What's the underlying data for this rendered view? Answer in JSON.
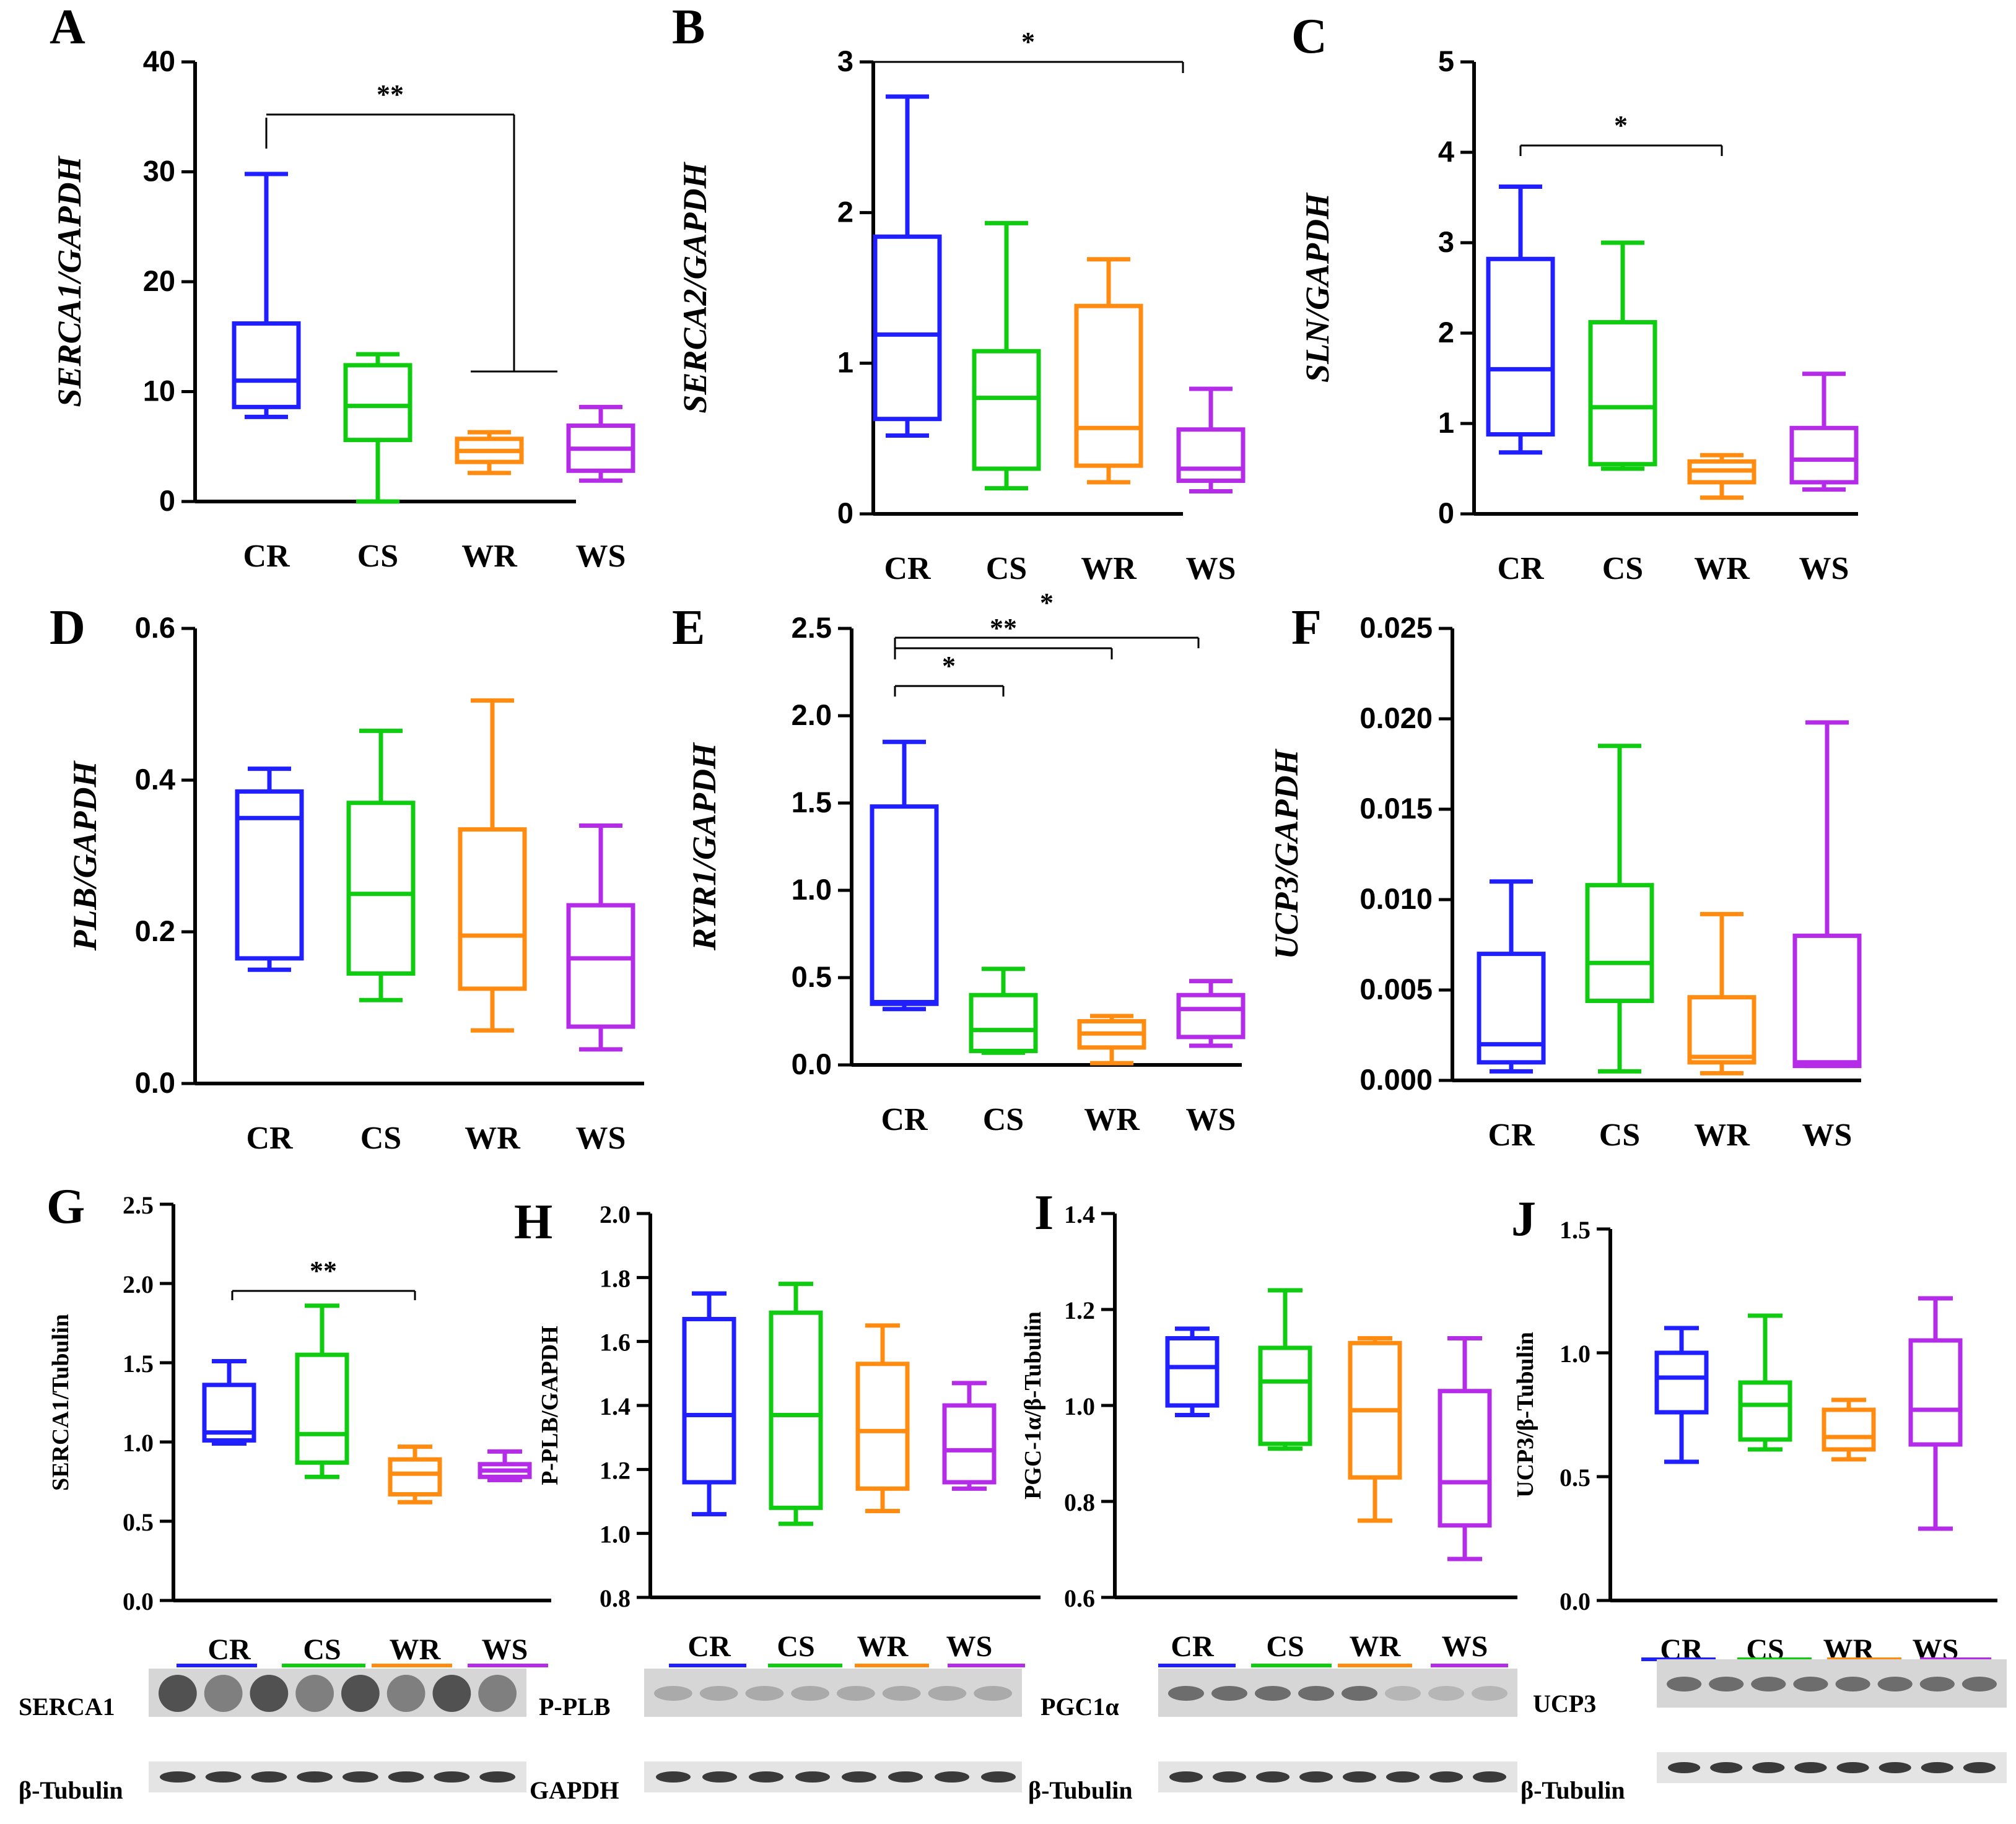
{
  "categories": [
    "CR",
    "CS",
    "WR",
    "WS"
  ],
  "colors": {
    "CR": "#1f1fff",
    "CS": "#10cc10",
    "WR": "#ff8c10",
    "WS": "#b42ce8"
  },
  "chart_data": [
    {
      "panel": "A",
      "type": "box",
      "ylabel": "SERCA1/GAPDH",
      "ylim": [
        0,
        40
      ],
      "ticks": [
        "0",
        "10",
        "20",
        "30",
        "40"
      ],
      "boxes": [
        {
          "category": "CR",
          "min": 7.7,
          "q1": 8.6,
          "median": 11,
          "q3": 16.2,
          "max": 29.8
        },
        {
          "category": "CS",
          "min": 0,
          "q1": 5.6,
          "median": 8.7,
          "q3": 12.4,
          "max": 13.4
        },
        {
          "category": "WR",
          "min": 2.6,
          "q1": 3.6,
          "median": 4.6,
          "q3": 5.7,
          "max": 6.3
        },
        {
          "category": "WS",
          "min": 1.9,
          "q1": 2.8,
          "median": 4.8,
          "q3": 6.9,
          "max": 8.6
        }
      ],
      "significance": [
        {
          "from": "CR",
          "to": "WR-WS",
          "label": "**"
        }
      ]
    },
    {
      "panel": "B",
      "type": "box",
      "ylabel": "SERCA2/GAPDH",
      "ylim": [
        0,
        3
      ],
      "ticks": [
        "0",
        "1",
        "2",
        "3"
      ],
      "boxes": [
        {
          "category": "CR",
          "min": 0.52,
          "q1": 0.63,
          "median": 1.19,
          "q3": 1.84,
          "max": 2.77
        },
        {
          "category": "CS",
          "min": 0.17,
          "q1": 0.3,
          "median": 0.77,
          "q3": 1.08,
          "max": 1.93
        },
        {
          "category": "WR",
          "min": 0.21,
          "q1": 0.32,
          "median": 0.57,
          "q3": 1.38,
          "max": 1.69
        },
        {
          "category": "WS",
          "min": 0.15,
          "q1": 0.22,
          "median": 0.3,
          "q3": 0.56,
          "max": 0.83
        }
      ],
      "significance": [
        {
          "from": "CR",
          "to": "WS",
          "label": "*"
        }
      ]
    },
    {
      "panel": "C",
      "type": "box",
      "ylabel": "SLN/GAPDH",
      "ylim": [
        0,
        5
      ],
      "ticks": [
        "0",
        "1",
        "2",
        "3",
        "4",
        "5"
      ],
      "boxes": [
        {
          "category": "CR",
          "min": 0.68,
          "q1": 0.88,
          "median": 1.6,
          "q3": 2.82,
          "max": 3.62
        },
        {
          "category": "CS",
          "min": 0.5,
          "q1": 0.55,
          "median": 1.18,
          "q3": 2.12,
          "max": 3.0
        },
        {
          "category": "WR",
          "min": 0.18,
          "q1": 0.35,
          "median": 0.48,
          "q3": 0.58,
          "max": 0.65
        },
        {
          "category": "WS",
          "min": 0.27,
          "q1": 0.35,
          "median": 0.6,
          "q3": 0.95,
          "max": 1.55
        }
      ],
      "significance": [
        {
          "from": "CR",
          "to": "WR",
          "label": "*"
        }
      ]
    },
    {
      "panel": "D",
      "type": "box",
      "ylabel": "PLB/GAPDH",
      "ylim": [
        0,
        0.6
      ],
      "ticks": [
        "0.0",
        "0.2",
        "0.4",
        "0.6"
      ],
      "boxes": [
        {
          "category": "CR",
          "min": 0.15,
          "q1": 0.165,
          "median": 0.35,
          "q3": 0.385,
          "max": 0.415
        },
        {
          "category": "CS",
          "min": 0.11,
          "q1": 0.145,
          "median": 0.25,
          "q3": 0.37,
          "max": 0.465
        },
        {
          "category": "WR",
          "min": 0.07,
          "q1": 0.125,
          "median": 0.195,
          "q3": 0.335,
          "max": 0.505
        },
        {
          "category": "WS",
          "min": 0.045,
          "q1": 0.075,
          "median": 0.165,
          "q3": 0.235,
          "max": 0.34
        }
      ],
      "significance": []
    },
    {
      "panel": "E",
      "type": "box",
      "ylabel": "RYR1/GAPDH",
      "ylim": [
        0,
        2.5
      ],
      "ticks": [
        "0.0",
        "0.5",
        "1.0",
        "1.5",
        "2.0",
        "2.5"
      ],
      "boxes": [
        {
          "category": "CR",
          "min": 0.32,
          "q1": 0.35,
          "median": 0.36,
          "q3": 1.48,
          "max": 1.85
        },
        {
          "category": "CS",
          "min": 0.07,
          "q1": 0.08,
          "median": 0.2,
          "q3": 0.4,
          "max": 0.55
        },
        {
          "category": "WR",
          "min": 0.01,
          "q1": 0.1,
          "median": 0.18,
          "q3": 0.25,
          "max": 0.28
        },
        {
          "category": "WS",
          "min": 0.11,
          "q1": 0.16,
          "median": 0.32,
          "q3": 0.4,
          "max": 0.48
        }
      ],
      "significance": [
        {
          "from": "CR",
          "to": "CS",
          "label": "*"
        },
        {
          "from": "CR",
          "to": "WR",
          "label": "**"
        },
        {
          "from": "CR",
          "to": "WS",
          "label": "*"
        }
      ]
    },
    {
      "panel": "F",
      "type": "box",
      "ylabel": "UCP3/GAPDH",
      "ylim": [
        0,
        0.025
      ],
      "ticks": [
        "0.000",
        "0.005",
        "0.010",
        "0.015",
        "0.020",
        "0.025"
      ],
      "boxes": [
        {
          "category": "CR",
          "min": 0.0005,
          "q1": 0.001,
          "median": 0.002,
          "q3": 0.007,
          "max": 0.011
        },
        {
          "category": "CS",
          "min": 0.0005,
          "q1": 0.0044,
          "median": 0.0065,
          "q3": 0.0108,
          "max": 0.0185
        },
        {
          "category": "WR",
          "min": 0.0004,
          "q1": 0.001,
          "median": 0.0013,
          "q3": 0.0046,
          "max": 0.0092
        },
        {
          "category": "WS",
          "min": 0.0008,
          "q1": 0.0008,
          "median": 0.001,
          "q3": 0.008,
          "max": 0.0198
        }
      ],
      "significance": []
    },
    {
      "panel": "G",
      "type": "box",
      "ylabel": "SERCA1/Tubulin",
      "ylim": [
        0,
        2.5
      ],
      "ticks": [
        "0.0",
        "0.5",
        "1.0",
        "1.5",
        "2.0",
        "2.5"
      ],
      "boxes": [
        {
          "category": "CR",
          "min": 0.99,
          "q1": 1.01,
          "median": 1.06,
          "q3": 1.36,
          "max": 1.51
        },
        {
          "category": "CS",
          "min": 0.78,
          "q1": 0.87,
          "median": 1.05,
          "q3": 1.55,
          "max": 1.86
        },
        {
          "category": "WR",
          "min": 0.62,
          "q1": 0.67,
          "median": 0.8,
          "q3": 0.89,
          "max": 0.97
        },
        {
          "category": "WS",
          "min": 0.76,
          "q1": 0.78,
          "median": 0.82,
          "q3": 0.86,
          "max": 0.94
        }
      ],
      "significance": [
        {
          "from": "CR",
          "to": "WR",
          "label": "**"
        }
      ]
    },
    {
      "panel": "H",
      "type": "box",
      "ylabel": "P-PLB/GAPDH",
      "ylim": [
        0.8,
        2.0
      ],
      "ticks": [
        "0.8",
        "1.0",
        "1.2",
        "1.4",
        "1.6",
        "1.8",
        "2.0"
      ],
      "boxes": [
        {
          "category": "CR",
          "min": 1.06,
          "q1": 1.16,
          "median": 1.37,
          "q3": 1.67,
          "max": 1.75
        },
        {
          "category": "CS",
          "min": 1.03,
          "q1": 1.08,
          "median": 1.37,
          "q3": 1.69,
          "max": 1.78
        },
        {
          "category": "WR",
          "min": 1.07,
          "q1": 1.14,
          "median": 1.32,
          "q3": 1.53,
          "max": 1.65
        },
        {
          "category": "WS",
          "min": 1.14,
          "q1": 1.16,
          "median": 1.26,
          "q3": 1.4,
          "max": 1.47
        }
      ],
      "significance": []
    },
    {
      "panel": "I",
      "type": "box",
      "ylabel": "PGC-1α/β-Tubulin",
      "ylim": [
        0.6,
        1.4
      ],
      "ticks": [
        "0.6",
        "0.8",
        "1.0",
        "1.2",
        "1.4"
      ],
      "boxes": [
        {
          "category": "CR",
          "min": 0.98,
          "q1": 1.0,
          "median": 1.08,
          "q3": 1.14,
          "max": 1.16
        },
        {
          "category": "CS",
          "min": 0.91,
          "q1": 0.92,
          "median": 1.05,
          "q3": 1.12,
          "max": 1.24
        },
        {
          "category": "WR",
          "min": 0.76,
          "q1": 0.85,
          "median": 0.99,
          "q3": 1.13,
          "max": 1.14
        },
        {
          "category": "WS",
          "min": 0.68,
          "q1": 0.75,
          "median": 0.84,
          "q3": 1.03,
          "max": 1.14
        }
      ],
      "significance": []
    },
    {
      "panel": "J",
      "type": "box",
      "ylabel": "UCP3/β-Tubulin",
      "ylim": [
        0,
        1.5
      ],
      "ticks": [
        "0.0",
        "0.5",
        "1.0",
        "1.5"
      ],
      "boxes": [
        {
          "category": "CR",
          "min": 0.56,
          "q1": 0.76,
          "median": 0.9,
          "q3": 1.0,
          "max": 1.1
        },
        {
          "category": "CS",
          "min": 0.61,
          "q1": 0.65,
          "median": 0.79,
          "q3": 0.88,
          "max": 1.15
        },
        {
          "category": "WR",
          "min": 0.57,
          "q1": 0.61,
          "median": 0.66,
          "q3": 0.77,
          "max": 0.81
        },
        {
          "category": "WS",
          "min": 0.29,
          "q1": 0.63,
          "median": 0.77,
          "q3": 1.05,
          "max": 1.22
        }
      ],
      "significance": []
    }
  ],
  "blots": [
    {
      "top": "SERCA1",
      "bottom": "β-Tubulin",
      "bottom_right": "GAPDH"
    },
    {
      "top": "P-PLB"
    },
    {
      "top": "PGC1α",
      "bottom": "β-Tubulin"
    },
    {
      "top": "UCP3",
      "bottom": "β-Tubulin"
    }
  ]
}
